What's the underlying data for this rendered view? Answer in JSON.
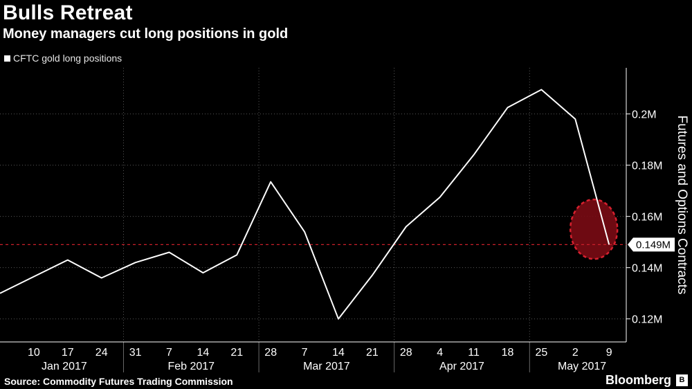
{
  "header": {
    "title": "Bulls Retreat",
    "subtitle": "Money managers cut long positions in gold"
  },
  "footer": {
    "source": "Source: Commodity Futures Trading Commission",
    "brand": "Bloomberg",
    "brand_mark": "B"
  },
  "colors": {
    "background": "#000000",
    "line": "#ffffff",
    "reference_line": "#cc1f2b",
    "highlight_fill": "#7a0b14",
    "highlight_stroke": "#d6202e"
  },
  "chart_data": {
    "type": "line",
    "title": "Bulls Retreat",
    "subtitle": "Money managers cut long positions in gold",
    "ylabel": "Futures and Options Contracts",
    "xlabel": "",
    "legend": [
      "CFTC gold long positions"
    ],
    "legend_position": "top-left",
    "grid": true,
    "ylim": [
      0.111,
      0.218
    ],
    "y_ticks": [
      0.12,
      0.14,
      0.16,
      0.18,
      0.2
    ],
    "y_tick_labels": [
      "0.12M",
      "0.14M",
      "0.16M",
      "0.18M",
      "0.2M"
    ],
    "y_unit": "M",
    "x_tick_labels": [
      "10",
      "17",
      "24",
      "31",
      "7",
      "14",
      "21",
      "28",
      "7",
      "14",
      "21",
      "28",
      "4",
      "11",
      "18",
      "25",
      "2",
      "9"
    ],
    "months": [
      "Jan 2017",
      "Feb 2017",
      "Mar 2017",
      "Apr 2017",
      "May 2017"
    ],
    "series": [
      {
        "name": "CFTC gold long positions",
        "x": [
          "2017-01-03",
          "2017-01-10",
          "2017-01-17",
          "2017-01-24",
          "2017-01-31",
          "2017-02-07",
          "2017-02-14",
          "2017-02-21",
          "2017-02-28",
          "2017-03-07",
          "2017-03-14",
          "2017-03-21",
          "2017-03-28",
          "2017-04-04",
          "2017-04-11",
          "2017-04-18",
          "2017-04-25",
          "2017-05-02",
          "2017-05-09"
        ],
        "values": [
          0.13,
          0.1365,
          0.143,
          0.136,
          0.142,
          0.146,
          0.138,
          0.145,
          0.1735,
          0.154,
          0.12,
          0.137,
          0.156,
          0.1675,
          0.184,
          0.2025,
          0.2095,
          0.198,
          0.149
        ]
      }
    ],
    "reference_line": {
      "value": 0.149,
      "label": "0.149M",
      "style": "dashed"
    },
    "highlight": {
      "shape": "ellipse",
      "note": "latest week decline highlighted"
    }
  }
}
